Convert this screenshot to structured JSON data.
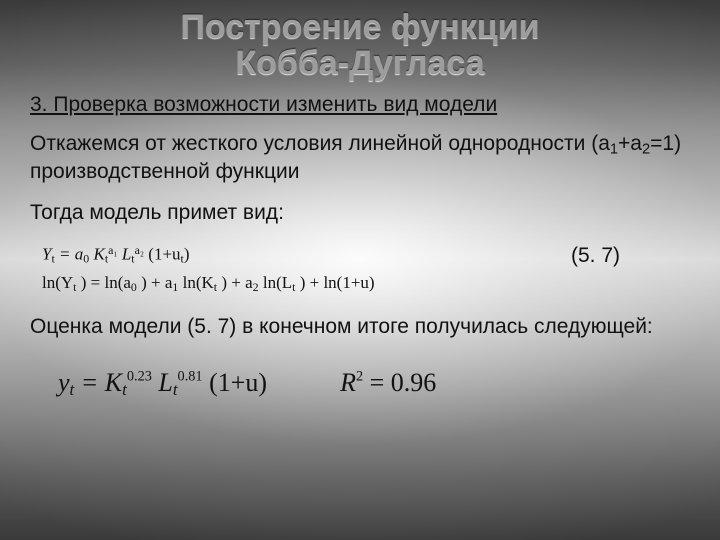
{
  "title": {
    "line1": "Построение функции",
    "line2": "Кобба-Дугласа"
  },
  "section": "3. Проверка возможности изменить вид модели",
  "para1_a": "Откажемся от жесткого условия линейной однородности (a",
  "para1_b": "+a",
  "para1_c": "=1) производственной функции",
  "para2": "Тогда модель примет вид:",
  "eq": {
    "line1_a": "Y",
    "line1_b": " = a",
    "line1_c": "K",
    "line1_d": "L",
    "line1_tail": "(1+u",
    "line1_tail2": ")",
    "sup_a1": "a₁",
    "sup_a2": "a₂",
    "sub_t": "t",
    "sub_0": "0",
    "line2": "ln(Y",
    "line2_b": ") = ln(a",
    "line2_c": ") + a",
    "line2_d": "ln(K",
    "line2_e": ") + a",
    "line2_f": "ln(L",
    "line2_g": ") + ln(1+u)",
    "number": "(5. 7)"
  },
  "para3": "Оценка модели (5. 7) в конечном итоге получилась следующей:",
  "final": {
    "y": "y",
    "eq": " = K",
    "l": "L",
    "tail": "(1+u)",
    "exp1": "0.23",
    "exp2": "0.81",
    "sub_t": "t",
    "r2_lhs": "R",
    "r2_sup": "2",
    "r2_rhs": " = 0.96"
  },
  "style": {
    "title_color": "#9d9d9d",
    "body_color": "#111111",
    "title_fontsize": 34,
    "body_fontsize": 21,
    "final_fontsize": 26,
    "background_stops": [
      "#3a3a3a",
      "#5a5a5a",
      "#8f8f8f",
      "#bfbfbf",
      "#e9e9e9",
      "#bfbfbf",
      "#8a8a8a",
      "#5a5a5a",
      "#3a3a3a"
    ]
  }
}
